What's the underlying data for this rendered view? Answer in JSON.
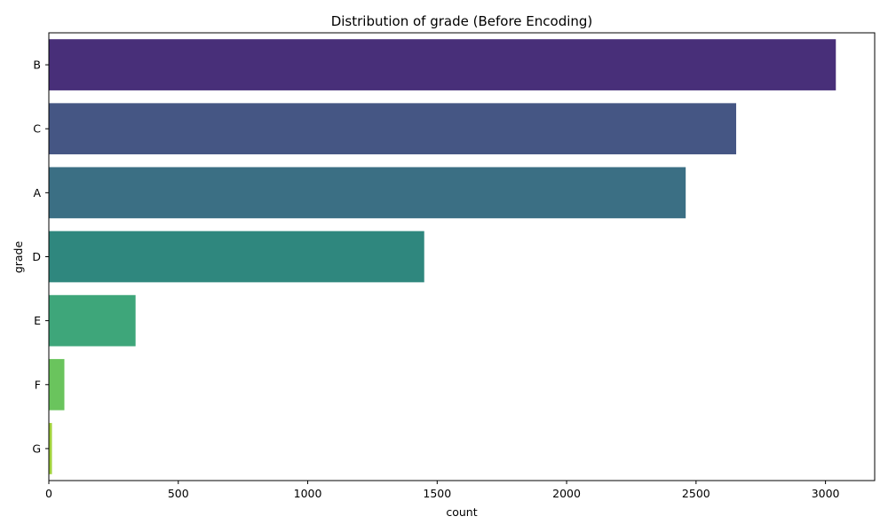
{
  "chart_data": {
    "type": "bar",
    "orientation": "horizontal",
    "title": "Distribution of grade (Before Encoding)",
    "xlabel": "count",
    "ylabel": "grade",
    "categories": [
      "B",
      "C",
      "A",
      "D",
      "E",
      "F",
      "G"
    ],
    "values": [
      3040,
      2655,
      2460,
      1450,
      335,
      60,
      12
    ],
    "colors": [
      "#482f79",
      "#455684",
      "#3b6f84",
      "#2f877e",
      "#3ea67a",
      "#6ac45d",
      "#a1d23b"
    ],
    "xlim": [
      0,
      3190
    ],
    "xticks": [
      0,
      500,
      1000,
      1500,
      2000,
      2500,
      3000
    ],
    "grid": false,
    "legend": "none"
  }
}
